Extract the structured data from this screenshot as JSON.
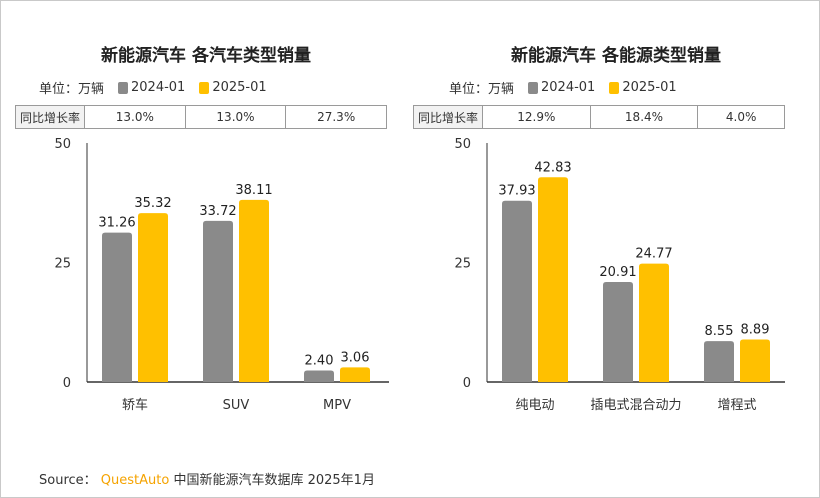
{
  "colors": {
    "series_2024": "#8a8a8a",
    "series_2025": "#ffc000",
    "brand": "#f5a300",
    "axis": "#333333"
  },
  "watermark": "QUESTAUTO",
  "unit_label": "单位：万辆",
  "growth_row_label": "同比增长率",
  "source": {
    "prefix": "Source：",
    "brand": "QuestAuto",
    "text": "中国新能源汽车数据库 2025年1月"
  },
  "chart_data": [
    {
      "type": "bar",
      "title": "新能源汽车 各汽车类型销量",
      "categories": [
        "轿车",
        "SUV",
        "MPV"
      ],
      "series": [
        {
          "name": "2024-01",
          "values": [
            31.26,
            33.72,
            2.4
          ],
          "labels": [
            "31.26",
            "33.72",
            "2.40"
          ]
        },
        {
          "name": "2025-01",
          "values": [
            35.32,
            38.11,
            3.06
          ],
          "labels": [
            "35.32",
            "38.11",
            "3.06"
          ]
        }
      ],
      "yticks": [
        "0",
        "25",
        "50"
      ],
      "ylim": [
        0,
        50
      ],
      "yoy_growth": [
        "13.0%",
        "13.0%",
        "27.3%"
      ]
    },
    {
      "type": "bar",
      "title": "新能源汽车 各能源类型销量",
      "categories": [
        "纯电动",
        "插电式混合动力",
        "增程式"
      ],
      "series": [
        {
          "name": "2024-01",
          "values": [
            37.93,
            20.91,
            8.55
          ],
          "labels": [
            "37.93",
            "20.91",
            "8.55"
          ]
        },
        {
          "name": "2025-01",
          "values": [
            42.83,
            24.77,
            8.89
          ],
          "labels": [
            "42.83",
            "24.77",
            "8.89"
          ]
        }
      ],
      "yticks": [
        "0",
        "25",
        "50"
      ],
      "ylim": [
        0,
        50
      ],
      "yoy_growth": [
        "12.9%",
        "18.4%",
        "4.0%"
      ]
    }
  ]
}
